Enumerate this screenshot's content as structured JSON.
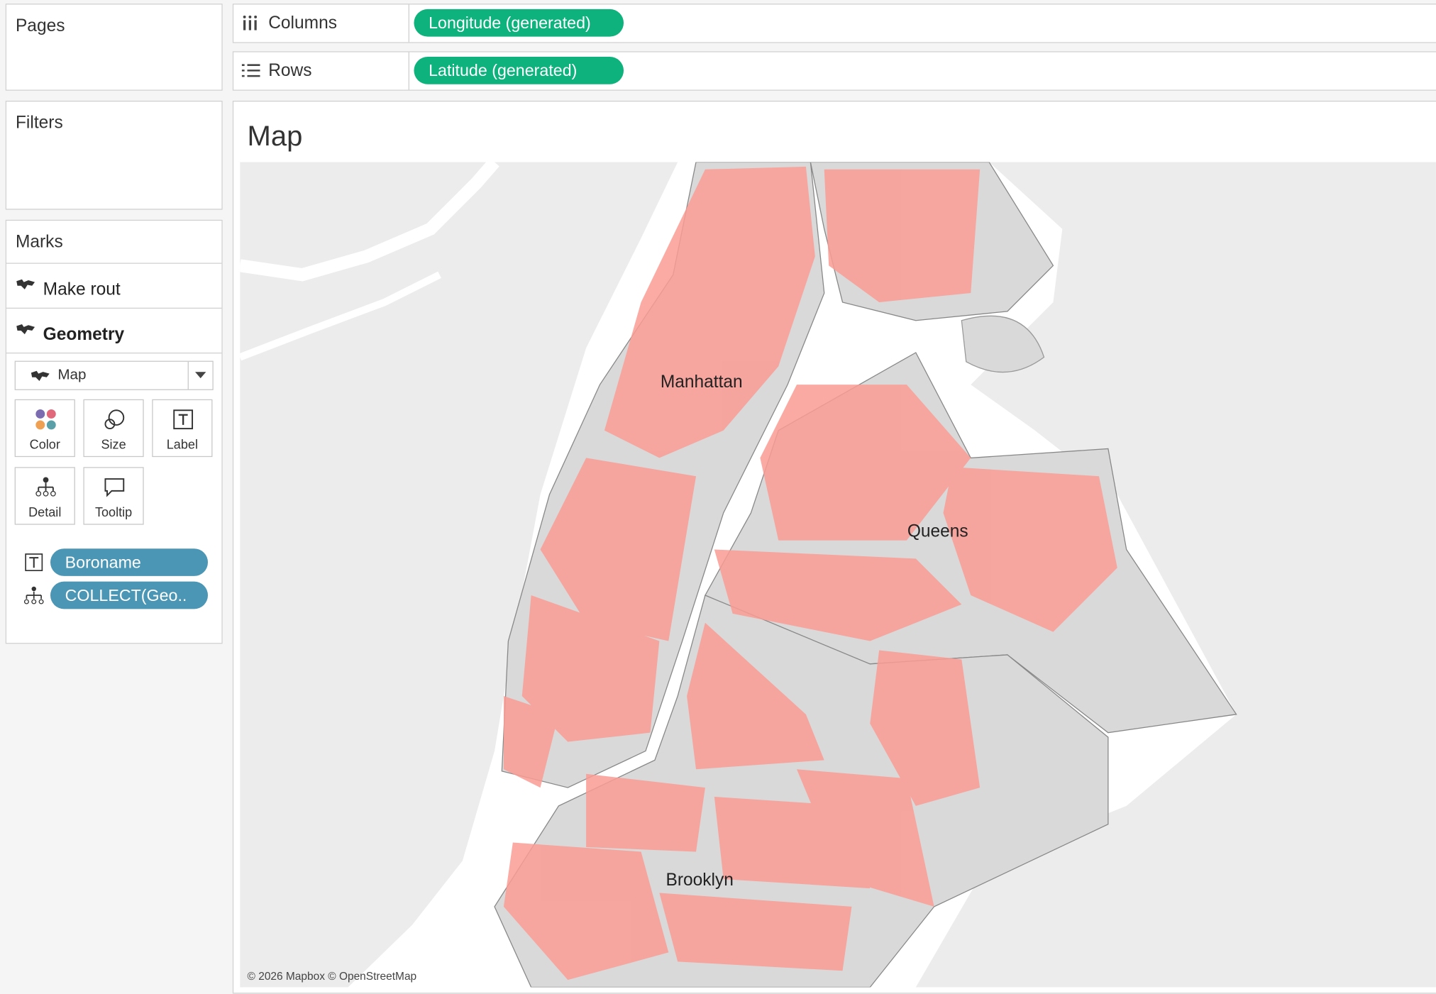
{
  "pages": {
    "title": "Pages"
  },
  "columns": {
    "label": "Columns",
    "pill": "Longitude (generated)"
  },
  "rows": {
    "label": "Rows",
    "pill": "Latitude (generated)"
  },
  "filters": {
    "title": "Filters"
  },
  "marks": {
    "title": "Marks",
    "layers": [
      "Make rout",
      "Geometry"
    ],
    "mark_type": "Map",
    "buttons": [
      "Color",
      "Size",
      "Label",
      "Detail",
      "Tooltip"
    ],
    "fields": [
      "Boroname",
      "COLLECT(Geo.."
    ]
  },
  "map": {
    "title": "Map",
    "labels": [
      "Manhattan",
      "Queens",
      "Brooklyn"
    ],
    "attribution": "© 2026 Mapbox © OpenStreetMap"
  }
}
